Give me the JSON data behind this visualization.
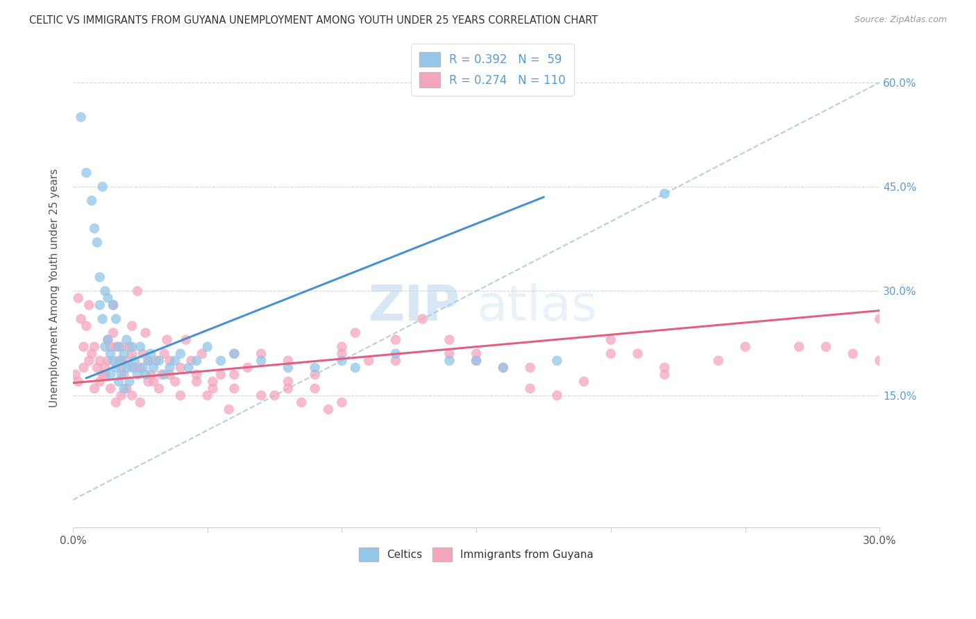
{
  "title": "CELTIC VS IMMIGRANTS FROM GUYANA UNEMPLOYMENT AMONG YOUTH UNDER 25 YEARS CORRELATION CHART",
  "source": "Source: ZipAtlas.com",
  "ylabel": "Unemployment Among Youth under 25 years",
  "xmin": 0.0,
  "xmax": 0.3,
  "ymin": -0.04,
  "ymax": 0.65,
  "yticks": [
    0.15,
    0.3,
    0.45,
    0.6
  ],
  "ytick_labels_right": [
    "15.0%",
    "30.0%",
    "45.0%",
    "60.0%"
  ],
  "xtick_vals": [
    0.0,
    0.05,
    0.1,
    0.15,
    0.2,
    0.25,
    0.3
  ],
  "xtick_labels": [
    "0.0%",
    "",
    "",
    "",
    "",
    "",
    "30.0%"
  ],
  "celtics_color": "#93c6e8",
  "guyana_color": "#f4a5bc",
  "celtics_line_color": "#4a90d0",
  "guyana_line_color": "#e06080",
  "diag_color": "#b0c8e0",
  "R_celtics": 0.392,
  "N_celtics": 59,
  "R_guyana": 0.274,
  "N_guyana": 110,
  "watermark_zip": "ZIP",
  "watermark_atlas": "atlas",
  "background_color": "#ffffff",
  "celtics_line_x0": 0.005,
  "celtics_line_y0": 0.175,
  "celtics_line_x1": 0.175,
  "celtics_line_y1": 0.435,
  "guyana_line_x0": 0.0,
  "guyana_line_y0": 0.168,
  "guyana_line_x1": 0.3,
  "guyana_line_y1": 0.272,
  "celtics_x": [
    0.003,
    0.005,
    0.007,
    0.008,
    0.009,
    0.01,
    0.01,
    0.011,
    0.011,
    0.012,
    0.012,
    0.013,
    0.013,
    0.014,
    0.014,
    0.015,
    0.015,
    0.016,
    0.016,
    0.017,
    0.017,
    0.018,
    0.018,
    0.019,
    0.019,
    0.02,
    0.02,
    0.021,
    0.022,
    0.022,
    0.023,
    0.024,
    0.025,
    0.026,
    0.027,
    0.028,
    0.029,
    0.03,
    0.032,
    0.034,
    0.036,
    0.038,
    0.04,
    0.043,
    0.046,
    0.05,
    0.055,
    0.06,
    0.07,
    0.08,
    0.09,
    0.1,
    0.12,
    0.14,
    0.16,
    0.18,
    0.105,
    0.15,
    0.22
  ],
  "celtics_y": [
    0.55,
    0.47,
    0.43,
    0.39,
    0.37,
    0.32,
    0.28,
    0.45,
    0.26,
    0.3,
    0.22,
    0.29,
    0.23,
    0.21,
    0.18,
    0.28,
    0.2,
    0.26,
    0.19,
    0.22,
    0.17,
    0.2,
    0.18,
    0.21,
    0.16,
    0.23,
    0.19,
    0.17,
    0.22,
    0.19,
    0.2,
    0.18,
    0.22,
    0.19,
    0.18,
    0.2,
    0.21,
    0.19,
    0.2,
    0.18,
    0.19,
    0.2,
    0.21,
    0.19,
    0.2,
    0.22,
    0.2,
    0.21,
    0.2,
    0.19,
    0.19,
    0.2,
    0.21,
    0.2,
    0.19,
    0.2,
    0.19,
    0.2,
    0.44
  ],
  "guyana_x": [
    0.002,
    0.003,
    0.004,
    0.005,
    0.006,
    0.007,
    0.008,
    0.009,
    0.01,
    0.011,
    0.012,
    0.013,
    0.013,
    0.014,
    0.015,
    0.015,
    0.016,
    0.017,
    0.018,
    0.018,
    0.019,
    0.02,
    0.021,
    0.022,
    0.022,
    0.023,
    0.024,
    0.025,
    0.026,
    0.027,
    0.028,
    0.029,
    0.03,
    0.031,
    0.033,
    0.034,
    0.035,
    0.036,
    0.038,
    0.04,
    0.042,
    0.044,
    0.046,
    0.048,
    0.05,
    0.052,
    0.055,
    0.058,
    0.06,
    0.065,
    0.07,
    0.075,
    0.08,
    0.085,
    0.09,
    0.095,
    0.1,
    0.105,
    0.11,
    0.12,
    0.13,
    0.14,
    0.15,
    0.16,
    0.17,
    0.18,
    0.19,
    0.2,
    0.21,
    0.22,
    0.001,
    0.002,
    0.004,
    0.006,
    0.008,
    0.01,
    0.012,
    0.014,
    0.016,
    0.018,
    0.02,
    0.022,
    0.025,
    0.028,
    0.032,
    0.036,
    0.04,
    0.046,
    0.052,
    0.06,
    0.07,
    0.08,
    0.09,
    0.1,
    0.12,
    0.14,
    0.17,
    0.2,
    0.24,
    0.27,
    0.29,
    0.3,
    0.06,
    0.08,
    0.1,
    0.15,
    0.22,
    0.25,
    0.28,
    0.3
  ],
  "guyana_y": [
    0.29,
    0.26,
    0.22,
    0.25,
    0.28,
    0.21,
    0.22,
    0.19,
    0.2,
    0.18,
    0.19,
    0.23,
    0.2,
    0.22,
    0.28,
    0.24,
    0.22,
    0.2,
    0.19,
    0.22,
    0.18,
    0.2,
    0.22,
    0.25,
    0.21,
    0.19,
    0.3,
    0.19,
    0.21,
    0.24,
    0.2,
    0.18,
    0.17,
    0.2,
    0.18,
    0.21,
    0.23,
    0.2,
    0.17,
    0.19,
    0.23,
    0.2,
    0.18,
    0.21,
    0.15,
    0.17,
    0.18,
    0.13,
    0.16,
    0.19,
    0.21,
    0.15,
    0.16,
    0.14,
    0.18,
    0.13,
    0.21,
    0.24,
    0.2,
    0.2,
    0.26,
    0.23,
    0.21,
    0.19,
    0.16,
    0.15,
    0.17,
    0.23,
    0.21,
    0.18,
    0.18,
    0.17,
    0.19,
    0.2,
    0.16,
    0.17,
    0.18,
    0.16,
    0.14,
    0.15,
    0.16,
    0.15,
    0.14,
    0.17,
    0.16,
    0.18,
    0.15,
    0.17,
    0.16,
    0.18,
    0.15,
    0.17,
    0.16,
    0.14,
    0.23,
    0.21,
    0.19,
    0.21,
    0.2,
    0.22,
    0.21,
    0.2,
    0.21,
    0.2,
    0.22,
    0.2,
    0.19,
    0.22,
    0.22,
    0.26
  ]
}
